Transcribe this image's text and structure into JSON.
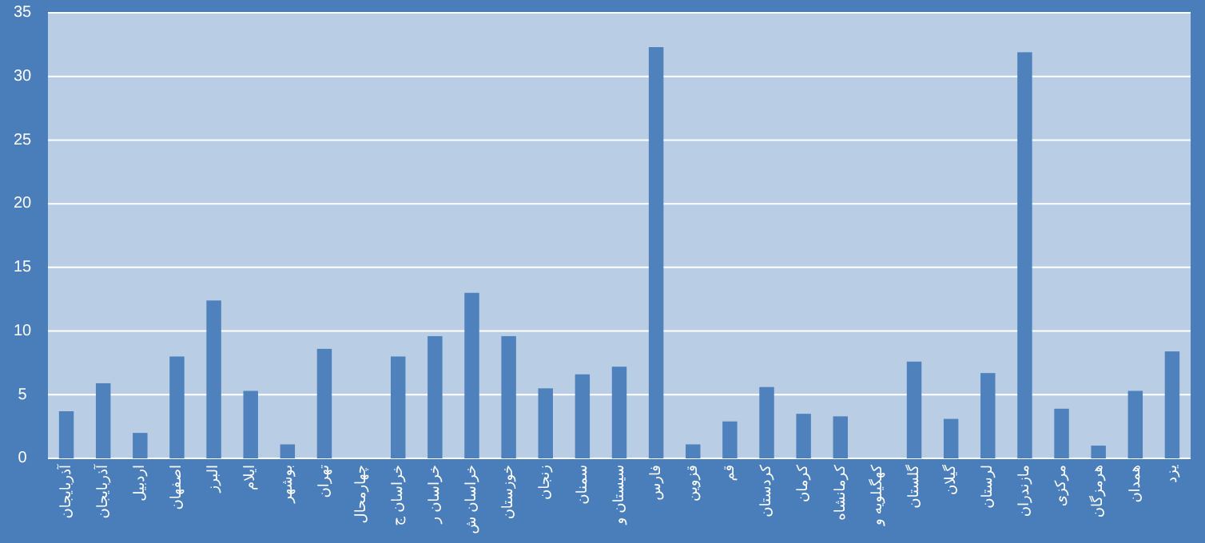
{
  "chart_data": {
    "type": "bar",
    "categories": [
      "آذربایجان",
      "آذربایجان",
      "اردبیل",
      "اصفهان",
      "البرز",
      "ایلام",
      "بوشهر",
      "تهران",
      "چهارمحال",
      "خراسان ج",
      "خراسان ر",
      "خراسان ش",
      "خوزستان",
      "زنجان",
      "سمنان",
      "سیستان و",
      "فارس",
      "قزوین",
      "قم",
      "کردستان",
      "کرمان",
      "کرمانشاه",
      "کهگیلویه و",
      "گلستان",
      "گیلان",
      "لرستان",
      "مازندران",
      "مرکزی",
      "هرمزگان",
      "همدان",
      "یزد"
    ],
    "values": [
      3.7,
      5.9,
      2.0,
      8.0,
      12.4,
      5.3,
      1.1,
      8.6,
      0,
      8.0,
      9.6,
      13.0,
      9.6,
      5.5,
      6.6,
      7.2,
      32.3,
      1.1,
      2.9,
      5.6,
      3.5,
      3.3,
      0,
      7.6,
      3.1,
      6.7,
      31.9,
      3.9,
      1.0,
      5.3,
      8.4
    ],
    "color": "#4f81bd",
    "ylim": [
      0,
      35
    ],
    "yticks": [
      0,
      5,
      10,
      15,
      20,
      25,
      30,
      35
    ],
    "grid": "y"
  }
}
